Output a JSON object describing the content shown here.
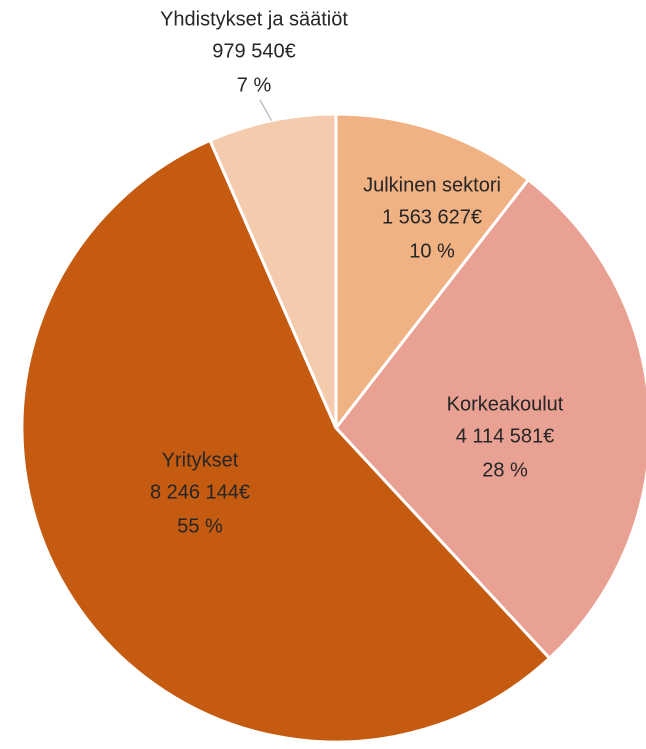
{
  "chart_data": {
    "type": "pie",
    "categories": [
      "Julkinen sektori",
      "Korkeakoulut",
      "Yritykset",
      "Yhdistykset ja säätiöt"
    ],
    "values": [
      1563627,
      4114581,
      8246144,
      979540
    ],
    "value_labels": [
      "1 563 627€",
      "4 114 581€",
      "8 246 144€",
      "979 540€"
    ],
    "percent_labels": [
      "10 %",
      "28 %",
      "55 %",
      "7 %"
    ],
    "colors": [
      "#f0b183",
      "#e8a193",
      "#c55a11",
      "#f5cbad"
    ]
  }
}
